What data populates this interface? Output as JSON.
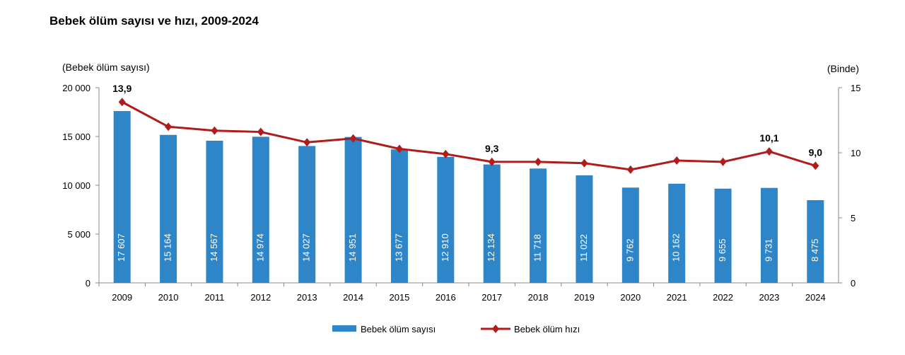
{
  "chart_data": {
    "type": "bar+line",
    "title": "Bebek ölüm sayısı ve hızı, 2009-2024",
    "ylabel_left": "(Bebek ölüm sayısı)",
    "ylabel_right": "(Binde)",
    "categories": [
      "2009",
      "2010",
      "2011",
      "2012",
      "2013",
      "2014",
      "2015",
      "2016",
      "2017",
      "2018",
      "2019",
      "2020",
      "2021",
      "2022",
      "2023",
      "2024"
    ],
    "left_ticks": [
      "0",
      "5 000",
      "10 000",
      "15 000",
      "20 000"
    ],
    "right_ticks": [
      "0",
      "5",
      "10",
      "15"
    ],
    "ylim_left": [
      0,
      20000
    ],
    "ylim_right": [
      0,
      15
    ],
    "series": [
      {
        "name": "Bebek ölüm sayısı",
        "type": "bar",
        "axis": "left",
        "color": "#2e86c9",
        "values": [
          17607,
          15164,
          14567,
          14974,
          14027,
          14951,
          13677,
          12910,
          12134,
          11718,
          11022,
          9762,
          10162,
          9655,
          9731,
          8475
        ],
        "labels": [
          "17 607",
          "15 164",
          "14 567",
          "14 974",
          "14 027",
          "14 951",
          "13 677",
          "12 910",
          "12 134",
          "11 718",
          "11 022",
          "9 762",
          "10 162",
          "9 655",
          "9 731",
          "8 475"
        ]
      },
      {
        "name": "Bebek ölüm hızı",
        "type": "line",
        "axis": "right",
        "color": "#b01c1c",
        "values": [
          13.9,
          12.0,
          11.7,
          11.6,
          10.8,
          11.1,
          10.3,
          9.9,
          9.3,
          9.3,
          9.2,
          8.7,
          9.4,
          9.3,
          10.1,
          9.0
        ],
        "point_labels": {
          "0": "13,9",
          "8": "9,3",
          "14": "10,1",
          "15": "9,0"
        }
      }
    ],
    "legend": "bottom"
  }
}
